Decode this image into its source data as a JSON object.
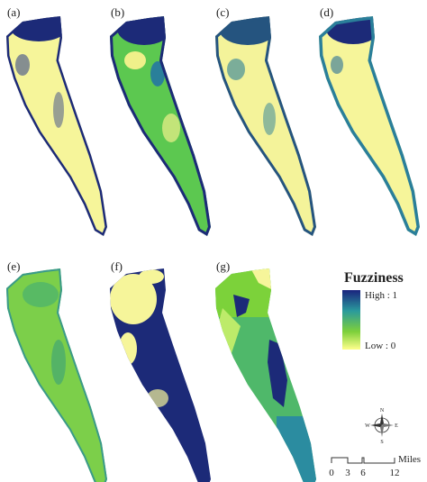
{
  "panels": [
    {
      "label": "(a)"
    },
    {
      "label": "(b)"
    },
    {
      "label": "(c)"
    },
    {
      "label": "(d)"
    },
    {
      "label": "(e)"
    },
    {
      "label": "(f)"
    },
    {
      "label": "(g)"
    }
  ],
  "legend": {
    "title": "Fuzziness",
    "high": "High : 1",
    "low": "Low : 0"
  },
  "compass": {
    "n": "N",
    "e": "E",
    "s": "S",
    "w": "W"
  },
  "scale_bar": {
    "ticks": [
      0,
      3,
      6,
      12
    ],
    "unit": "Miles"
  }
}
